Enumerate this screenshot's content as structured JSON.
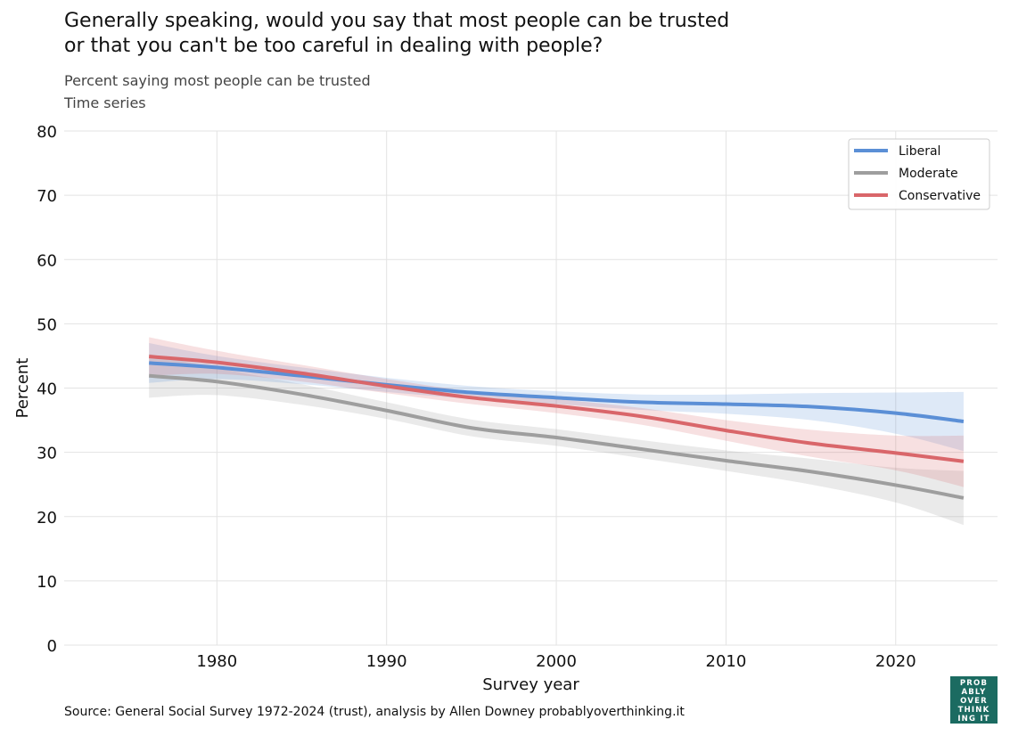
{
  "title_line1": "Generally speaking, would you say that most people can be trusted",
  "title_line2": "or that you can't be too careful in dealing with people?",
  "subtitle_line1": "Percent saying most people can be trusted",
  "subtitle_line2": "Time series",
  "source": "Source: General Social Survey 1972-2024 (trust), analysis by Allen Downey probablyoverthinking.it",
  "logo_lines": [
    "PROB",
    "ABLY",
    "OVER",
    "THINK",
    "ING IT"
  ],
  "colors": {
    "liberal": "#5b8fd6",
    "moderate": "#9e9e9e",
    "conservative": "#d9666a",
    "grid": "#e3e3e3",
    "logo_bg": "#1b6b61"
  },
  "chart_data": {
    "type": "line",
    "xlabel": "Survey year",
    "ylabel": "Percent",
    "xlim": [
      1971,
      2026
    ],
    "ylim": [
      0,
      80
    ],
    "xticks": [
      1980,
      1990,
      2000,
      2010,
      2020
    ],
    "yticks": [
      0,
      10,
      20,
      30,
      40,
      50,
      60,
      70,
      80
    ],
    "grid": true,
    "legend_position": "top-right",
    "series": [
      {
        "name": "Liberal",
        "color_key": "liberal",
        "x": [
          1976,
          1980,
          1985,
          1990,
          1995,
          2000,
          2005,
          2010,
          2015,
          2020,
          2024
        ],
        "y": [
          43.9,
          43.2,
          41.9,
          40.5,
          39.3,
          38.5,
          37.8,
          37.5,
          37.1,
          36.1,
          34.8
        ],
        "lower": [
          40.8,
          41.4,
          40.6,
          39.4,
          38.3,
          37.5,
          36.6,
          36.0,
          35.0,
          32.9,
          30.2
        ],
        "upper": [
          47.0,
          45.0,
          43.2,
          41.6,
          40.3,
          39.5,
          39.0,
          39.0,
          39.2,
          39.3,
          39.4
        ]
      },
      {
        "name": "Moderate",
        "color_key": "moderate",
        "x": [
          1976,
          1980,
          1985,
          1990,
          1995,
          2000,
          2005,
          2010,
          2015,
          2020,
          2024
        ],
        "y": [
          41.9,
          41.0,
          39.0,
          36.5,
          33.8,
          32.3,
          30.5,
          28.7,
          27.0,
          24.9,
          22.9
        ],
        "lower": [
          38.5,
          38.9,
          37.4,
          35.2,
          32.5,
          31.0,
          29.1,
          27.1,
          25.0,
          22.2,
          18.7
        ],
        "upper": [
          45.3,
          43.1,
          40.6,
          37.8,
          35.1,
          33.6,
          31.9,
          30.3,
          29.0,
          27.6,
          27.1
        ]
      },
      {
        "name": "Conservative",
        "color_key": "conservative",
        "x": [
          1976,
          1980,
          1985,
          1990,
          1995,
          2000,
          2005,
          2010,
          2015,
          2020,
          2024
        ],
        "y": [
          44.9,
          44.0,
          42.3,
          40.3,
          38.5,
          37.2,
          35.6,
          33.4,
          31.4,
          29.9,
          28.6
        ],
        "lower": [
          41.9,
          42.2,
          41.0,
          39.2,
          37.5,
          36.1,
          34.3,
          31.8,
          29.3,
          27.2,
          24.6
        ],
        "upper": [
          47.9,
          45.8,
          43.6,
          41.4,
          39.5,
          38.3,
          36.9,
          35.0,
          33.5,
          32.6,
          32.6
        ]
      }
    ]
  }
}
